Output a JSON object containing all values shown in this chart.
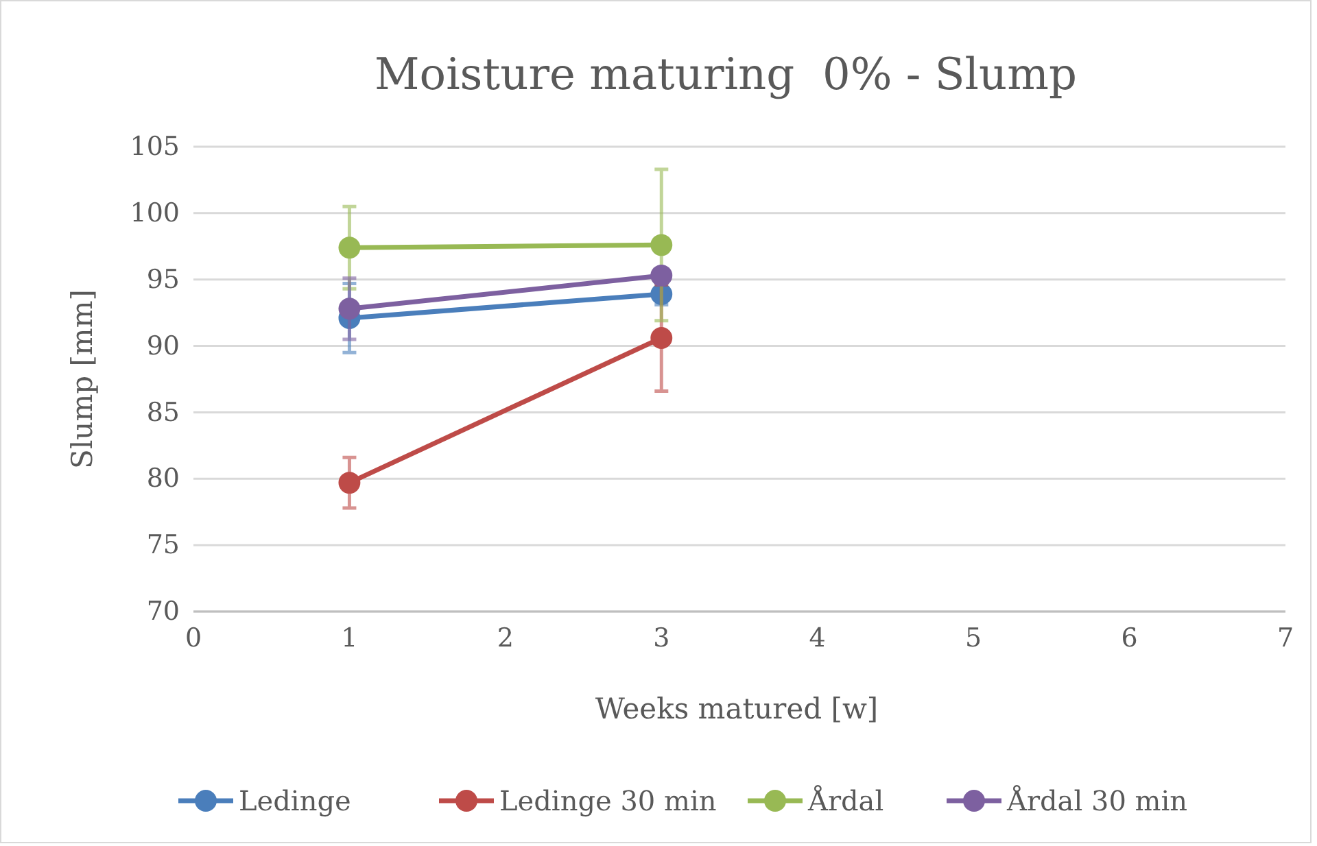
{
  "chart_data": {
    "type": "line",
    "title": "Moisture maturing  0% - Slump",
    "xlabel": "Weeks matured [w]",
    "ylabel": "Slump [mm]",
    "xlim": [
      0,
      7
    ],
    "xticks": [
      0,
      1,
      2,
      3,
      4,
      5,
      6,
      7
    ],
    "ylim": [
      70,
      105
    ],
    "yticks": [
      70,
      75,
      80,
      85,
      90,
      95,
      100,
      105
    ],
    "x": [
      1,
      3
    ],
    "grid": "y",
    "legend": "bottom",
    "marker": "circle",
    "line_style": "solid",
    "series": [
      {
        "name": "Ledinge",
        "color": "#4a7ebb",
        "values": [
          92.1,
          93.9
        ],
        "errors": [
          2.6,
          0.8
        ]
      },
      {
        "name": "Ledinge 30 min",
        "color": "#be4b48",
        "values": [
          79.7,
          90.6
        ],
        "errors": [
          1.9,
          4.0
        ]
      },
      {
        "name": "Årdal",
        "color": "#98b954",
        "values": [
          97.4,
          97.6
        ],
        "errors": [
          3.1,
          5.7
        ]
      },
      {
        "name": "Årdal 30 min",
        "color": "#7d60a0",
        "values": [
          92.8,
          95.3
        ],
        "errors": [
          2.3,
          null
        ]
      }
    ]
  }
}
